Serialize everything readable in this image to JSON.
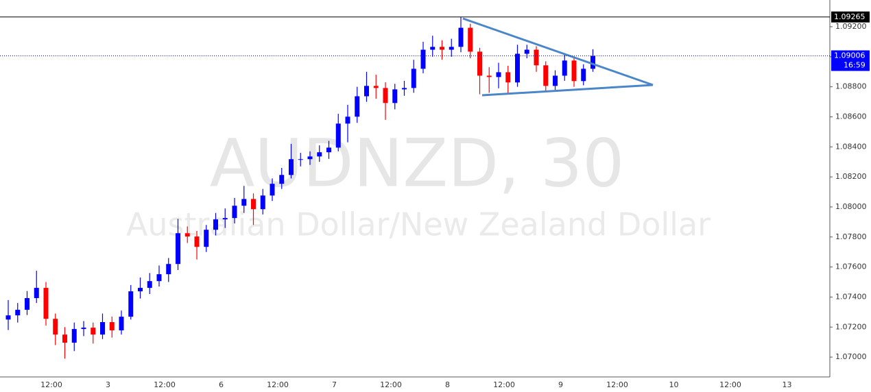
{
  "chart_data": {
    "type": "candlestick",
    "watermark": "AUDNZD, 30",
    "subtitle": "Australian Dollar/New Zealand Dollar",
    "up_color": "#0000ff",
    "down_color": "#ff0000",
    "open": [
      1.0725,
      1.07278,
      1.07315,
      1.07393,
      1.07461,
      1.07255,
      1.0715,
      1.07096,
      1.07187,
      1.07196,
      1.0715,
      1.07233,
      1.07178,
      1.07269,
      1.07438,
      1.07461,
      1.07506,
      1.07552,
      1.0762,
      1.07825,
      1.07803,
      1.07734,
      1.07848,
      1.07917,
      1.07926,
      1.08008,
      1.08053,
      1.07985,
      1.08076,
      1.08154,
      1.08213,
      1.08318,
      1.08318,
      1.08336,
      1.08364,
      1.08395,
      1.08555,
      1.08601,
      1.08737,
      1.08806,
      1.08792,
      1.08692,
      1.08783,
      1.08792,
      1.0892,
      1.09047,
      1.09066,
      1.09047,
      1.09066,
      1.09193,
      1.09034,
      1.08874,
      1.08865,
      1.08897,
      1.08829,
      1.0902,
      1.09047,
      1.08943,
      1.08806,
      1.08874,
      1.08975,
      1.08838,
      1.0892
    ],
    "high": [
      1.0738,
      1.0736,
      1.0744,
      1.07575,
      1.075,
      1.0729,
      1.072,
      1.0723,
      1.0724,
      1.0723,
      1.0729,
      1.0727,
      1.0731,
      1.0748,
      1.0753,
      1.0756,
      1.0761,
      1.0766,
      1.0792,
      1.0787,
      1.0784,
      1.0788,
      1.0796,
      1.0799,
      1.0806,
      1.0814,
      1.0809,
      1.0812,
      1.0819,
      1.0826,
      1.0842,
      1.0836,
      1.0837,
      1.0841,
      1.0844,
      1.0862,
      1.0868,
      1.088,
      1.089,
      1.0888,
      1.0883,
      1.0882,
      1.0884,
      1.0898,
      1.091,
      1.0914,
      1.0911,
      1.0912,
      1.09265,
      1.0922,
      1.0906,
      1.0893,
      1.0896,
      1.0894,
      1.0908,
      1.0908,
      1.0907,
      1.0897,
      1.0891,
      1.0902,
      1.09,
      1.0895,
      1.0905
    ],
    "low": [
      1.0718,
      1.0723,
      1.0728,
      1.0736,
      1.0721,
      1.0708,
      1.0699,
      1.0704,
      1.0714,
      1.0709,
      1.0712,
      1.0713,
      1.0715,
      1.0725,
      1.0739,
      1.0742,
      1.0747,
      1.075,
      1.0758,
      1.0776,
      1.0765,
      1.077,
      1.0781,
      1.0786,
      1.0789,
      1.0796,
      1.0788,
      1.0795,
      1.0804,
      1.0812,
      1.0819,
      1.0827,
      1.0828,
      1.083,
      1.0832,
      1.0837,
      1.0843,
      1.0856,
      1.087,
      1.0872,
      1.0858,
      1.0865,
      1.0874,
      1.0876,
      1.0889,
      1.09,
      1.0898,
      1.09,
      1.0903,
      1.0899,
      1.0875,
      1.0876,
      1.0879,
      1.0876,
      1.088,
      1.0899,
      1.089,
      1.0877,
      1.0878,
      1.0884,
      1.088,
      1.0881,
      1.089
    ],
    "close": [
      1.07278,
      1.07315,
      1.07393,
      1.07461,
      1.07255,
      1.0715,
      1.07096,
      1.07187,
      1.07196,
      1.0715,
      1.07233,
      1.07178,
      1.07269,
      1.07438,
      1.07461,
      1.07506,
      1.07552,
      1.0762,
      1.07825,
      1.07803,
      1.07734,
      1.07848,
      1.07917,
      1.07926,
      1.08008,
      1.08053,
      1.07985,
      1.08076,
      1.08154,
      1.08213,
      1.08318,
      1.08318,
      1.08336,
      1.08364,
      1.08395,
      1.08555,
      1.08601,
      1.08737,
      1.08806,
      1.08792,
      1.08692,
      1.08783,
      1.08792,
      1.0892,
      1.09047,
      1.09066,
      1.09047,
      1.09066,
      1.09193,
      1.09034,
      1.08874,
      1.08865,
      1.08897,
      1.08829,
      1.0902,
      1.09047,
      1.08943,
      1.08806,
      1.08874,
      1.08975,
      1.08838,
      1.0892,
      1.09006
    ],
    "ylim": [
      1.06868,
      1.09378
    ],
    "yticks": [
      {
        "value": 1.07,
        "label": "1.07000"
      },
      {
        "value": 1.072,
        "label": "1.07200"
      },
      {
        "value": 1.074,
        "label": "1.07400"
      },
      {
        "value": 1.076,
        "label": "1.07600"
      },
      {
        "value": 1.078,
        "label": "1.07800"
      },
      {
        "value": 1.08,
        "label": "1.08000"
      },
      {
        "value": 1.082,
        "label": "1.08200"
      },
      {
        "value": 1.084,
        "label": "1.08400"
      },
      {
        "value": 1.086,
        "label": "1.08600"
      },
      {
        "value": 1.088,
        "label": "1.08800"
      },
      {
        "value": 1.09,
        "label": "1.09000"
      },
      {
        "value": 1.092,
        "label": "1.09200"
      }
    ],
    "xtick_labels": [
      "12:00",
      "3",
      "12:00",
      "6",
      "12:00",
      "7",
      "12:00",
      "8",
      "12:00",
      "9",
      "12:00",
      "10",
      "12:00",
      "13"
    ],
    "high_marker": {
      "value": 1.09265,
      "label": "1.09265"
    },
    "last_marker": {
      "value": 1.09006,
      "label": "1.09006"
    },
    "countdown": "16:59"
  }
}
